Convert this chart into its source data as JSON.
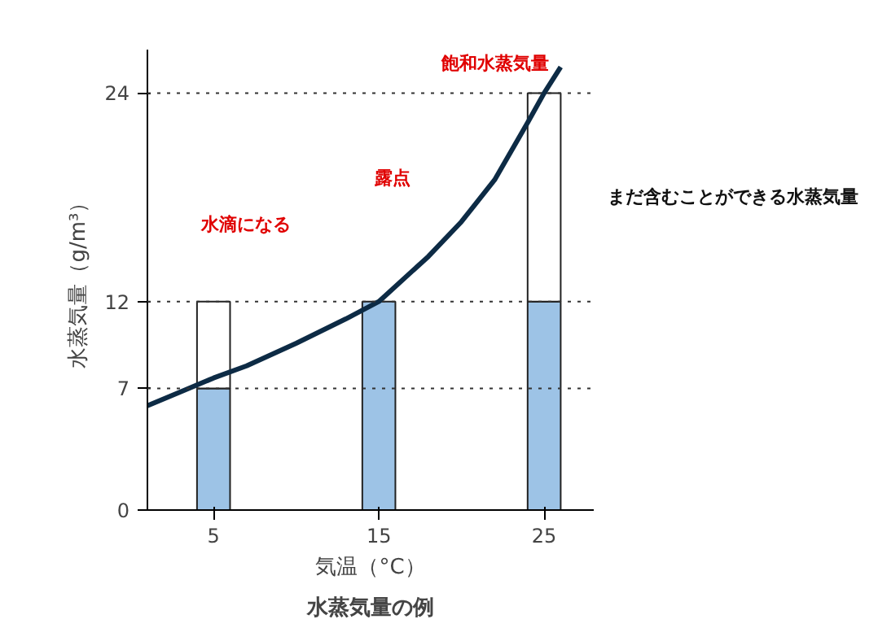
{
  "chart_data": {
    "type": "bar",
    "title": "水蒸気量の例",
    "xlabel": "気温（°C）",
    "ylabel": "水蒸気量（g/m³）",
    "x": [
      5,
      15,
      25
    ],
    "stacked": true,
    "series": [
      {
        "color": "#9dc3e6",
        "values": [
          7,
          12,
          12
        ]
      },
      {
        "color": "#ffffff",
        "values": [
          5,
          null,
          12
        ]
      },
      {
        "type": "line",
        "color": "#0d2b45",
        "x": [
          1,
          3,
          5,
          7,
          10,
          13,
          15,
          18,
          20,
          22,
          24,
          25,
          26
        ],
        "values": [
          6,
          6.8,
          7.6,
          8.3,
          9.6,
          11,
          12,
          14.6,
          16.6,
          19,
          22.3,
          24,
          25.5
        ]
      }
    ],
    "xlim": [
      1,
      28
    ],
    "ylim": [
      0,
      26.5
    ],
    "xticks": [
      5,
      15,
      25
    ],
    "yticks": [
      0,
      7,
      12,
      24
    ],
    "grid": false,
    "ref_lines": [
      {
        "axis": "y",
        "value": 7,
        "line_style": "dotted"
      },
      {
        "axis": "y",
        "value": 12,
        "line_style": "dotted"
      },
      {
        "axis": "y",
        "value": 24,
        "line_style": "dotted"
      }
    ],
    "annotations": [
      "飽和水蒸気量",
      "水滴になる",
      "露点",
      "まだ含むことができる水蒸気量"
    ]
  }
}
